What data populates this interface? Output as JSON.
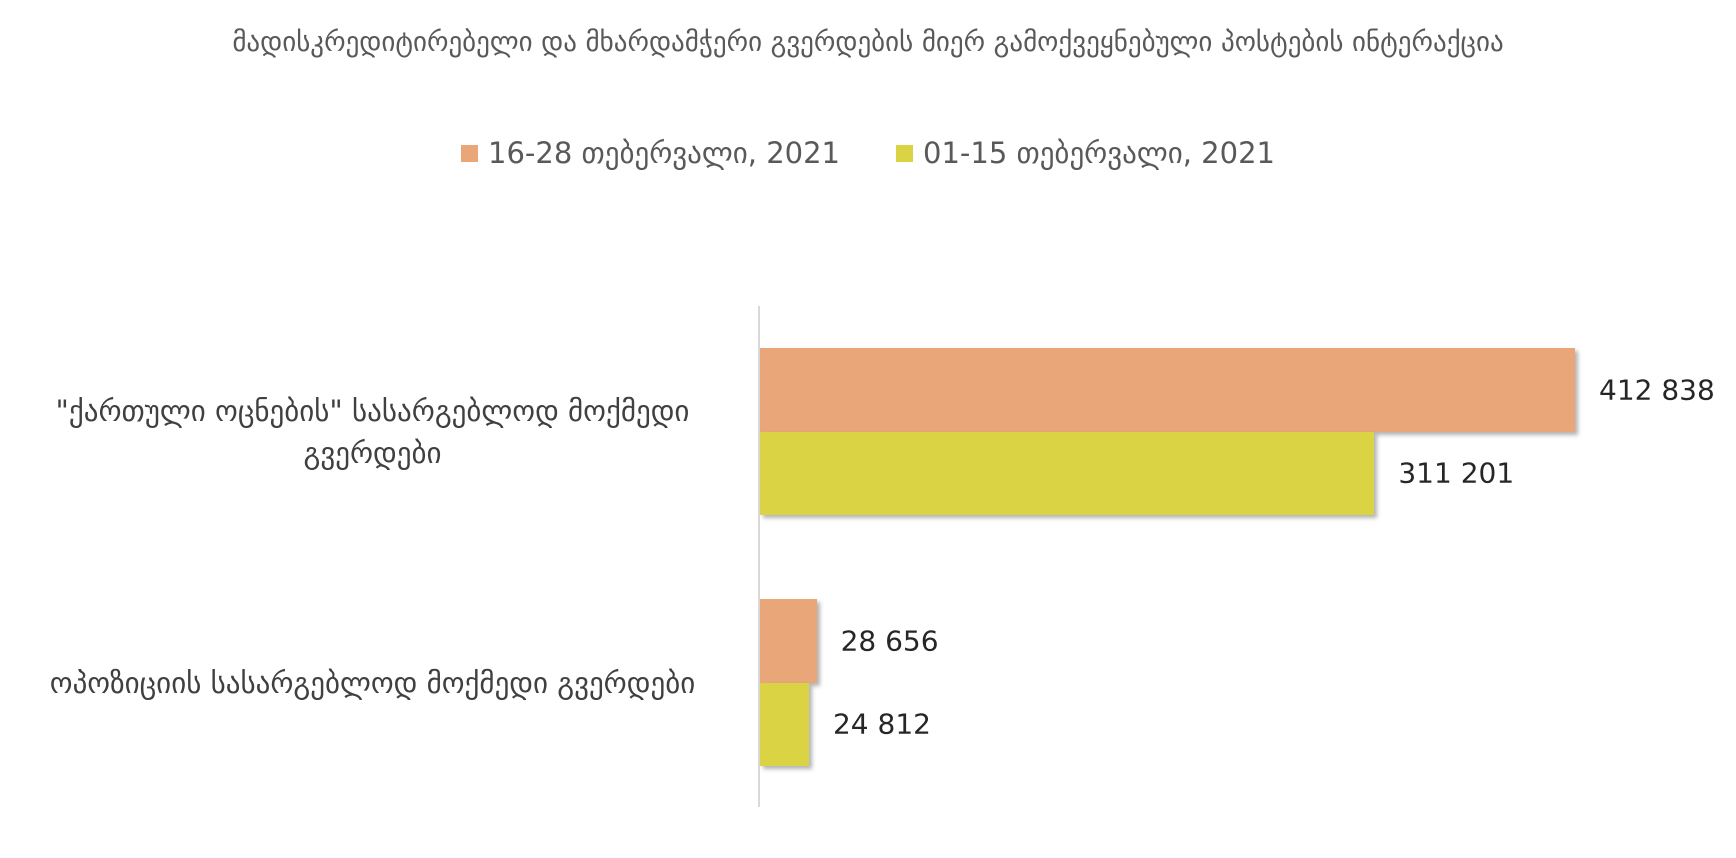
{
  "chart_data": {
    "type": "bar",
    "orientation": "horizontal",
    "title": "მადისკრედიტირებელი და მხარდამჭერი გვერდების მიერ გამოქვეყნებული პოსტების ინტერაქცია",
    "categories": [
      "\"ქართული ოცნების\" სასარგებლოდ მოქმედი გვერდები",
      "ოპოზიციის სასარგებლოდ მოქმედი გვერდები"
    ],
    "series": [
      {
        "name": "16-28 თებერვალი, 2021",
        "color": "#e8a679",
        "values": [
          412838,
          28656
        ],
        "value_labels": [
          "412 838",
          "28 656"
        ]
      },
      {
        "name": "01-15 თებერვალი, 2021",
        "color": "#dad444",
        "values": [
          311201,
          24812
        ],
        "value_labels": [
          "311 201",
          "24 812"
        ]
      }
    ],
    "legend": "top"
  }
}
